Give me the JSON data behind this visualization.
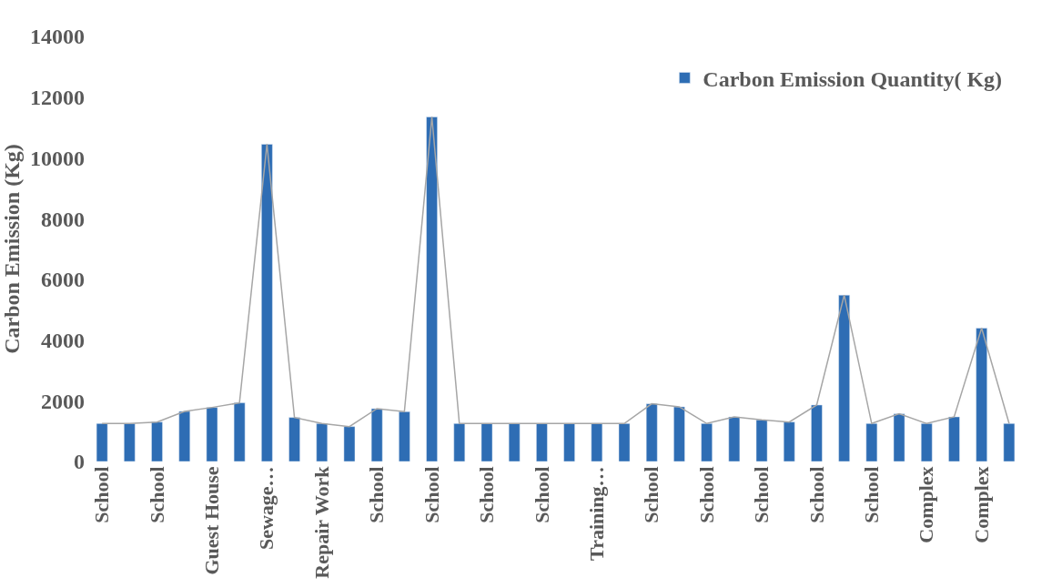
{
  "chart_data": {
    "type": "bar",
    "ylabel": "Carbon Emission (Kg)",
    "categories": [
      "School",
      null,
      "School",
      null,
      "Guest House",
      null,
      "Sewage…",
      null,
      "Repair Work",
      null,
      "School",
      null,
      "School",
      null,
      "School",
      null,
      "School",
      null,
      "Training…",
      null,
      "School",
      null,
      "School",
      null,
      "School",
      null,
      "School",
      null,
      "School",
      null,
      "Complex",
      null,
      "Complex",
      null
    ],
    "series": [
      {
        "name": "Carbon Emission Quantity( Kg)",
        "color": "#2e6db4",
        "values": [
          1250,
          1250,
          1300,
          1650,
          1780,
          1930,
          10450,
          1450,
          1250,
          1150,
          1740,
          1640,
          11350,
          1250,
          1250,
          1250,
          1250,
          1250,
          1250,
          1250,
          1900,
          1800,
          1250,
          1470,
          1370,
          1300,
          1860,
          5480,
          1250,
          1570,
          1250,
          1470,
          4390,
          1250
        ]
      },
      {
        "type": "line",
        "color": "#a6a6a6",
        "values": [
          1250,
          1250,
          1300,
          1650,
          1780,
          1930,
          10450,
          1450,
          1250,
          1150,
          1740,
          1640,
          11350,
          1250,
          1250,
          1250,
          1250,
          1250,
          1250,
          1250,
          1900,
          1800,
          1250,
          1470,
          1370,
          1300,
          1860,
          5480,
          1250,
          1570,
          1250,
          1470,
          4390,
          1250
        ]
      }
    ],
    "ylim": [
      0,
      14000
    ],
    "yticks": [
      0,
      2000,
      4000,
      6000,
      8000,
      10000,
      12000,
      14000
    ],
    "legend": "top right",
    "marker": "none"
  }
}
